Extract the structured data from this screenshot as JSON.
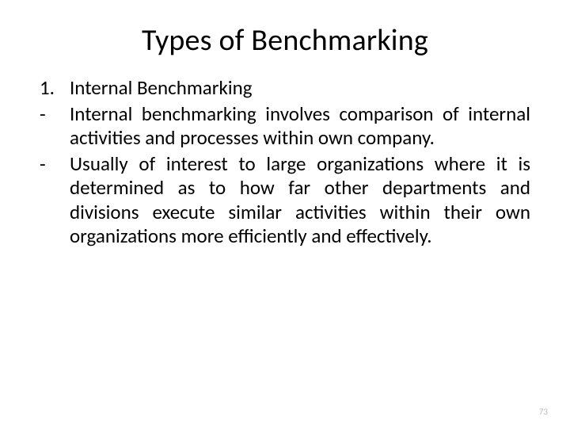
{
  "title": "Types of Benchmarking",
  "items": [
    {
      "marker": "1.",
      "text": "Internal Benchmarking",
      "cls": "subhead"
    },
    {
      "marker": "-",
      "text": "Internal benchmarking involves comparison of internal activities and processes within own company.",
      "cls": ""
    },
    {
      "marker": "-",
      "text": "Usually of interest to large organizations where it is determined as to how far other departments and divisions execute similar activities within their own organizations more efficiently and effectively.",
      "cls": ""
    }
  ],
  "page_number": "73",
  "colors": {
    "background": "#ffffff",
    "text": "#000000",
    "pagenum": "#bfbfbf"
  },
  "typography": {
    "title_fontsize": 38,
    "body_fontsize": 25,
    "pagenum_fontsize": 11,
    "font_family": "Calibri"
  }
}
